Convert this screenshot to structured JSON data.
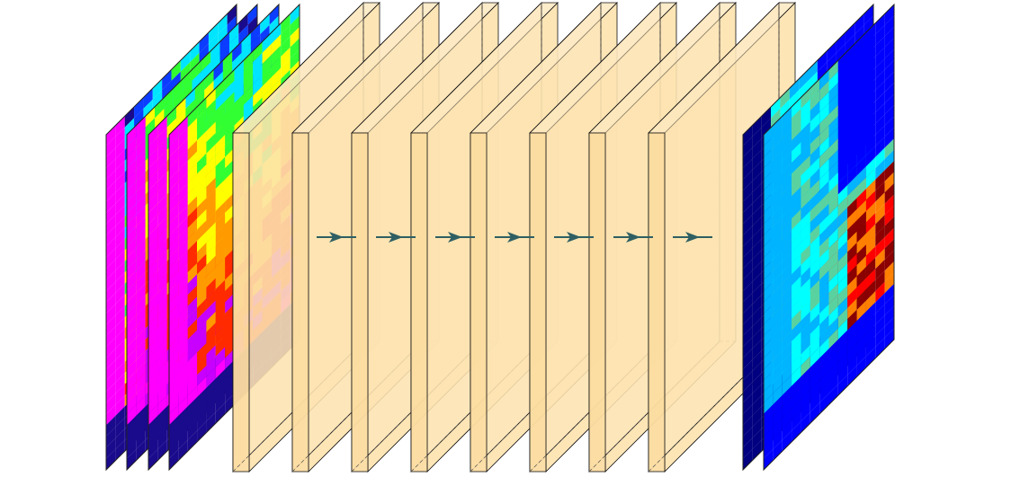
{
  "diagram": {
    "input_maps": {
      "count": 4,
      "colormap": [
        "#1a0a8c",
        "#0b3cff",
        "#00e5ff",
        "#32ff32",
        "#ffff00",
        "#ff9a00",
        "#ff2a00",
        "#c800ff",
        "#ff00ff"
      ]
    },
    "hidden_layers": {
      "count": 8,
      "face_color": "#fcdc9e",
      "side_color": "#fde7bd",
      "edge_color": "#111111",
      "arrows": 7,
      "arrow_color": "#2f5f63"
    },
    "output_maps": {
      "count": 2,
      "colormap": [
        "#000080",
        "#0000ff",
        "#00b4ff",
        "#00ffff",
        "#5ad2a0",
        "#ffff00",
        "#ff7f00",
        "#ff0000",
        "#8b0000"
      ]
    }
  }
}
